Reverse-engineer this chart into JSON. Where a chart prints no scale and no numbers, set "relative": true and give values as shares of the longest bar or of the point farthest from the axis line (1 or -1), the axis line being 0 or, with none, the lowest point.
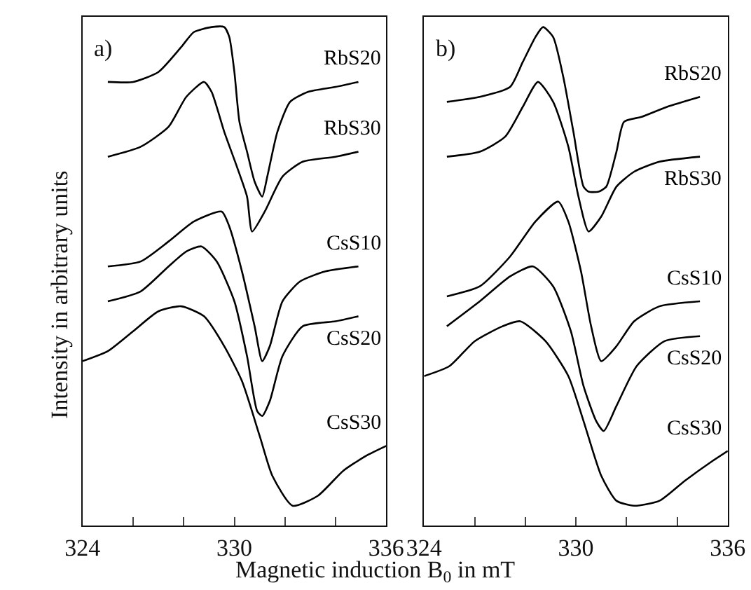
{
  "chart_data": [
    {
      "type": "line",
      "relative": true,
      "title": "a)",
      "ylabel": "Intensity in arbitrary units",
      "xlabel": "Magnetic induction B$_{0}$ in mT",
      "xlim": [
        324,
        336
      ],
      "xticks": [
        324,
        {
          "value": 326,
          "label": null
        },
        {
          "value": 328,
          "label": null
        },
        330,
        {
          "value": 332,
          "label": null
        },
        {
          "value": 334,
          "label": null
        },
        336
      ],
      "legend": false,
      "marker": "none",
      "line_style": "solid",
      "series": [
        {
          "name": "RbS20",
          "color": "#000000",
          "x": [
            325.0,
            326.0,
            327.0,
            327.9,
            328.4,
            329.1,
            329.6,
            329.8,
            330.0,
            330.2,
            330.5,
            330.8,
            331.1,
            331.3,
            331.7,
            332.2,
            332.9,
            334.0,
            334.9
          ],
          "values": [
            0.89,
            0.89,
            0.91,
            0.96,
            0.99,
            1.0,
            1.0,
            0.98,
            0.91,
            0.81,
            0.75,
            0.69,
            0.66,
            0.7,
            0.79,
            0.85,
            0.87,
            0.88,
            0.89
          ]
        },
        {
          "name": "RbS30",
          "color": "#000000",
          "x": [
            325.0,
            326.3,
            327.4,
            328.1,
            328.8,
            329.1,
            329.6,
            330.1,
            330.5,
            330.7,
            331.2,
            331.9,
            332.7,
            334.0,
            334.9
          ],
          "values": [
            0.74,
            0.76,
            0.8,
            0.86,
            0.89,
            0.87,
            0.79,
            0.72,
            0.66,
            0.59,
            0.63,
            0.7,
            0.73,
            0.74,
            0.75
          ]
        },
        {
          "name": "CsS10",
          "color": "#000000",
          "x": [
            325.0,
            326.3,
            327.4,
            328.4,
            329.5,
            329.8,
            330.3,
            330.8,
            331.1,
            331.4,
            331.9,
            332.6,
            333.6,
            334.9
          ],
          "values": [
            0.52,
            0.53,
            0.57,
            0.61,
            0.63,
            0.6,
            0.51,
            0.4,
            0.33,
            0.36,
            0.45,
            0.49,
            0.51,
            0.52
          ]
        },
        {
          "name": "CsS20",
          "color": "#000000",
          "x": [
            325.0,
            326.3,
            327.4,
            328.1,
            328.7,
            329.3,
            330.0,
            330.5,
            330.9,
            331.1,
            331.4,
            331.9,
            332.7,
            334.0,
            334.9
          ],
          "values": [
            0.45,
            0.47,
            0.52,
            0.55,
            0.56,
            0.53,
            0.45,
            0.34,
            0.23,
            0.22,
            0.25,
            0.34,
            0.4,
            0.41,
            0.42
          ]
        },
        {
          "name": "CsS30",
          "color": "#000000",
          "x": [
            324.0,
            325.0,
            326.0,
            327.0,
            327.9,
            328.8,
            329.6,
            330.3,
            331.0,
            331.5,
            332.3,
            333.3,
            334.3,
            335.2,
            336.0
          ],
          "values": [
            0.33,
            0.35,
            0.39,
            0.43,
            0.44,
            0.42,
            0.36,
            0.29,
            0.18,
            0.1,
            0.04,
            0.06,
            0.11,
            0.14,
            0.16
          ]
        }
      ]
    },
    {
      "type": "line",
      "relative": true,
      "title": "b)",
      "xlim": [
        324,
        336
      ],
      "xticks": [
        324,
        {
          "value": 326,
          "label": null
        },
        {
          "value": 328,
          "label": null
        },
        330,
        {
          "value": 332,
          "label": null
        },
        {
          "value": 334,
          "label": null
        },
        336
      ],
      "legend": false,
      "marker": "none",
      "line_style": "solid",
      "series": [
        {
          "name": "RbS20",
          "color": "#000000",
          "x": [
            324.9,
            326.2,
            327.4,
            327.9,
            328.4,
            328.7,
            329.1,
            329.5,
            329.9,
            330.3,
            330.5,
            330.9,
            331.2,
            331.6,
            331.9,
            332.6,
            333.6,
            334.9
          ],
          "values": [
            0.85,
            0.86,
            0.88,
            0.93,
            0.98,
            1.0,
            0.98,
            0.9,
            0.79,
            0.68,
            0.67,
            0.67,
            0.68,
            0.75,
            0.81,
            0.82,
            0.84,
            0.86
          ]
        },
        {
          "name": "RbS30",
          "color": "#000000",
          "x": [
            324.9,
            326.2,
            327.2,
            327.9,
            328.5,
            329.1,
            329.7,
            330.1,
            330.5,
            331.0,
            331.6,
            332.3,
            333.3,
            334.9
          ],
          "values": [
            0.74,
            0.75,
            0.78,
            0.84,
            0.89,
            0.85,
            0.76,
            0.66,
            0.59,
            0.62,
            0.68,
            0.71,
            0.73,
            0.74
          ]
        },
        {
          "name": "CsS10",
          "color": "#000000",
          "x": [
            324.9,
            326.2,
            327.4,
            328.4,
            329.3,
            329.7,
            330.2,
            330.6,
            331.0,
            331.6,
            332.3,
            333.3,
            334.9
          ],
          "values": [
            0.46,
            0.48,
            0.54,
            0.61,
            0.65,
            0.61,
            0.51,
            0.4,
            0.33,
            0.36,
            0.41,
            0.44,
            0.45
          ]
        },
        {
          "name": "CsS20",
          "color": "#000000",
          "x": [
            324.9,
            326.2,
            327.4,
            328.3,
            329.1,
            329.8,
            330.3,
            330.8,
            331.1,
            331.6,
            332.4,
            333.5,
            334.9
          ],
          "values": [
            0.4,
            0.45,
            0.5,
            0.52,
            0.48,
            0.39,
            0.28,
            0.21,
            0.19,
            0.24,
            0.32,
            0.37,
            0.38
          ]
        },
        {
          "name": "CsS30",
          "color": "#000000",
          "x": [
            324.0,
            325.0,
            326.0,
            327.1,
            327.8,
            328.8,
            329.7,
            330.3,
            331.0,
            331.6,
            332.3,
            333.3,
            334.3,
            335.4,
            336.0
          ],
          "values": [
            0.3,
            0.32,
            0.37,
            0.4,
            0.41,
            0.37,
            0.3,
            0.21,
            0.1,
            0.05,
            0.04,
            0.05,
            0.09,
            0.13,
            0.15
          ]
        }
      ]
    }
  ]
}
